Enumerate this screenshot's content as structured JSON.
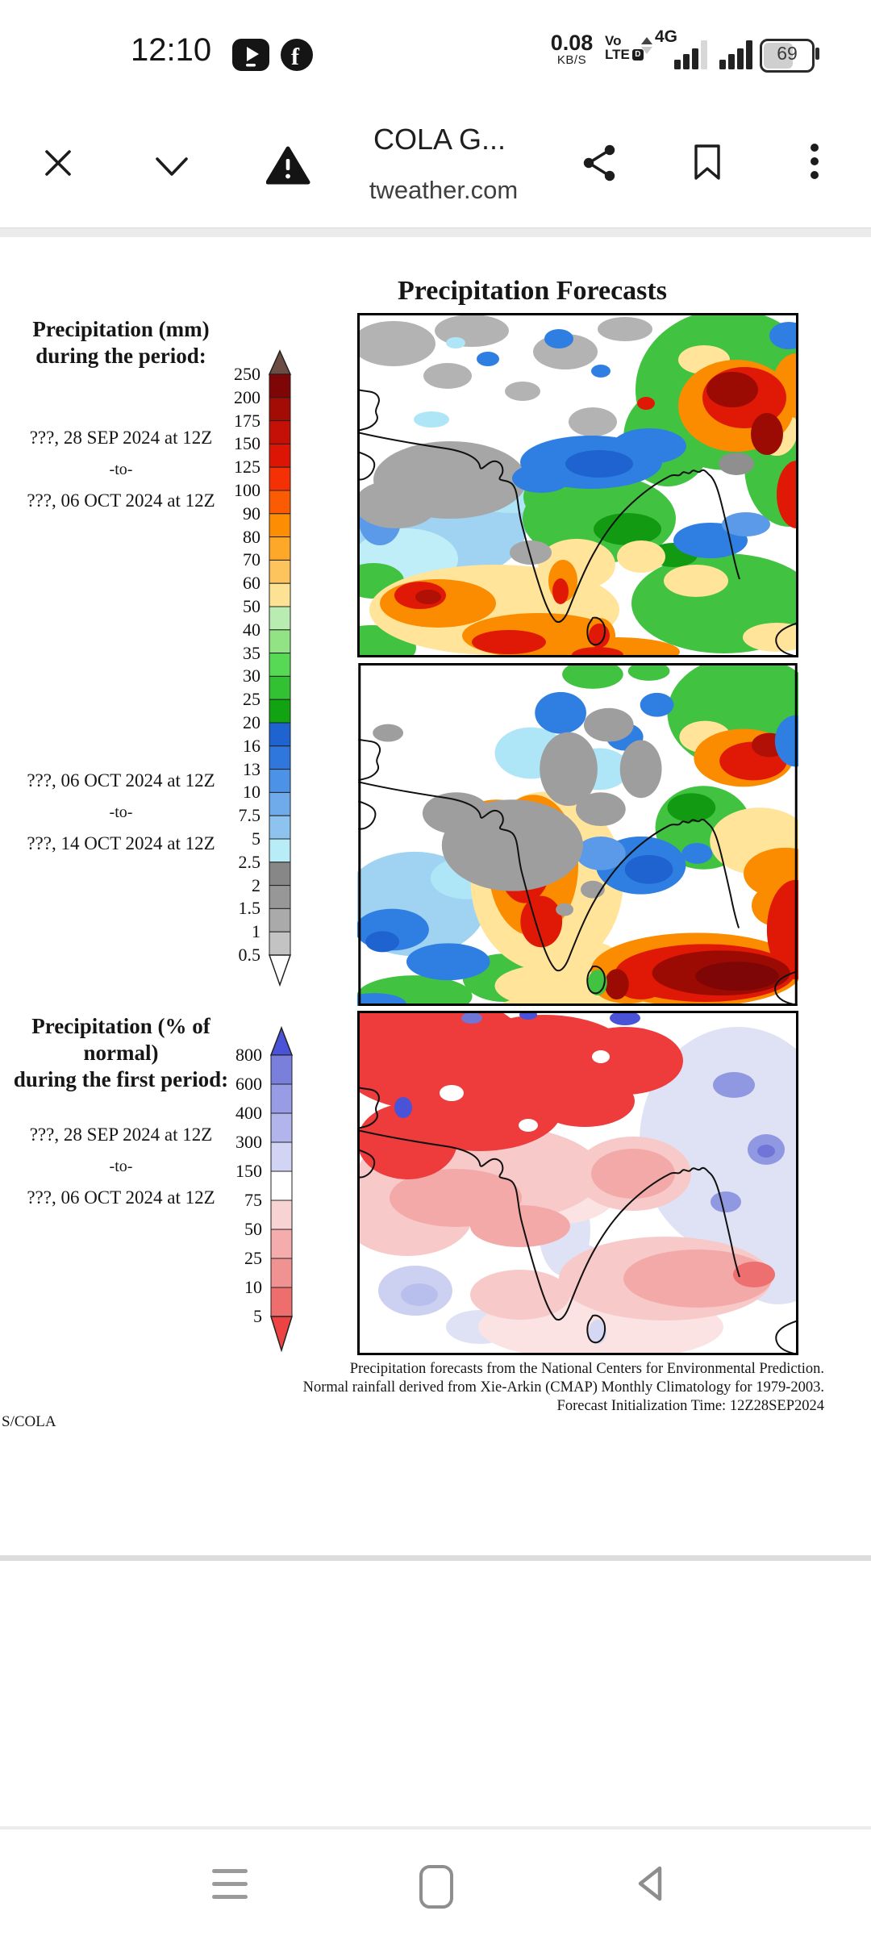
{
  "status_bar": {
    "time": "12:10",
    "net_speed": "0.08",
    "net_speed_unit": "KB/S",
    "volte_line1": "Vo",
    "volte_line2": "LTE",
    "hd_label": "D",
    "network_type": "4G",
    "battery_percent": "69"
  },
  "toolbar": {
    "title": "COLA G...",
    "url": "tweather.com"
  },
  "page": {
    "title": "Precipitation Forecasts",
    "sections": [
      {
        "heading1": "Precipitation (mm)",
        "heading2": "during the period:",
        "date_from": "???, 28 SEP 2024 at 12Z",
        "to": "-to-",
        "date_to": "???, 06 OCT 2024 at 12Z"
      },
      {
        "date_from": "???, 06 OCT 2024 at 12Z",
        "to": "-to-",
        "date_to": "???, 14 OCT 2024 at 12Z"
      },
      {
        "heading1": "Precipitation (% of normal)",
        "heading2": "during the first period:",
        "date_from": "???, 28 SEP 2024 at 12Z",
        "to": "-to-",
        "date_to": "???, 06 OCT 2024 at 12Z"
      }
    ],
    "caption": [
      "Precipitation forecasts from the National Centers for Environmental Prediction.",
      "Normal rainfall derived from Xie-Arkin (CMAP) Monthly Climatology for 1979-2003.",
      "Forecast Initialization Time: 12Z28SEP2024"
    ],
    "credit": "S/COLA"
  },
  "colorbar_mm": {
    "labels": [
      "250",
      "200",
      "175",
      "150",
      "125",
      "100",
      "90",
      "80",
      "70",
      "60",
      "50",
      "40",
      "35",
      "30",
      "25",
      "20",
      "16",
      "13",
      "10",
      "7.5",
      "5",
      "2.5",
      "2",
      "1.5",
      "1",
      "0.5"
    ],
    "segment_colors": [
      "#7e0606",
      "#a30b05",
      "#c41006",
      "#dd1505",
      "#f63005",
      "#fb5c03",
      "#fd8d02",
      "#fda829",
      "#fdc35c",
      "#fde296",
      "#b9ecb0",
      "#92e384",
      "#57d955",
      "#32c132",
      "#12a312",
      "#1e63cf",
      "#2f77dd",
      "#4c92e6",
      "#6fabea",
      "#8fc3ef",
      "#b8edf8",
      "#878787",
      "#979797",
      "#aaaaaa",
      "#c3c3c3"
    ],
    "arrow_up_color": "#6d4c43",
    "arrow_down_color": "#ffffff"
  },
  "colorbar_pct": {
    "labels": [
      "800",
      "600",
      "400",
      "300",
      "150",
      "75",
      "50",
      "25",
      "10",
      "5"
    ],
    "segment_colors": [
      "#7a7fdc",
      "#979ce4",
      "#b2b5eb",
      "#d2d4f3",
      "#ffffff",
      "#f8d3d3",
      "#f5acac",
      "#f19292",
      "#ee6e6e"
    ],
    "arrow_up_color": "#4a52d8",
    "arrow_down_color": "#ee4343"
  }
}
